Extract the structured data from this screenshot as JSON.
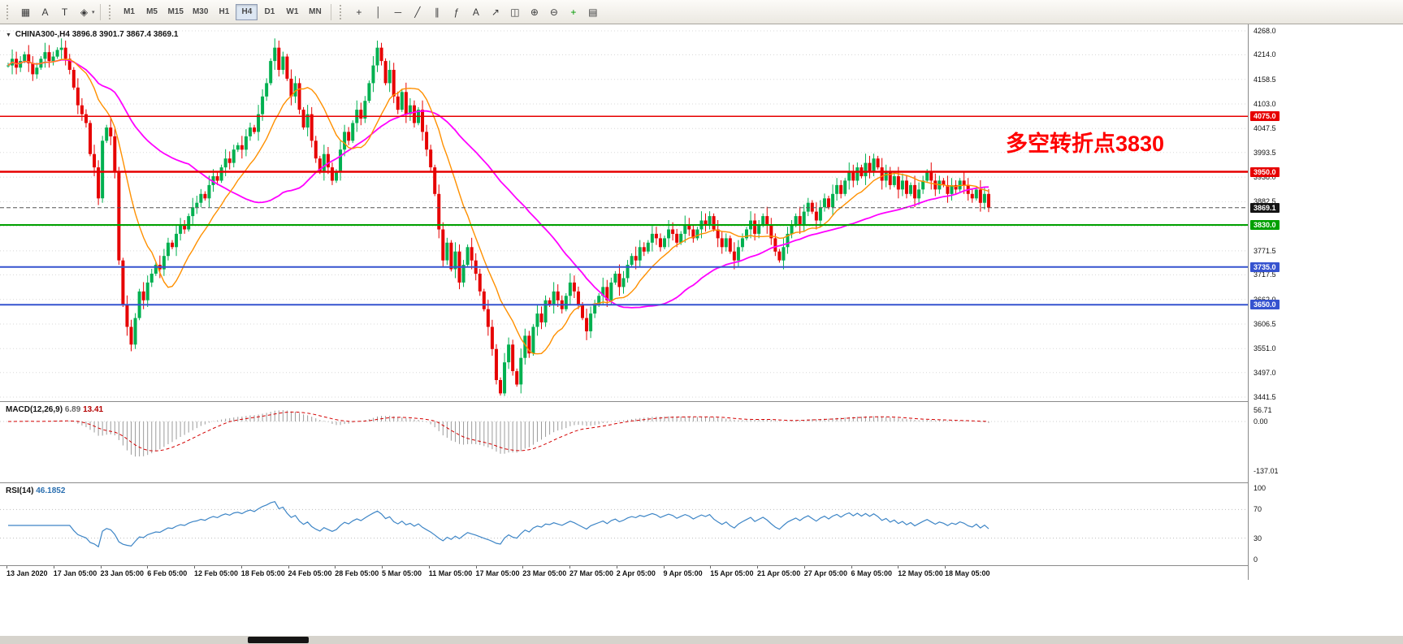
{
  "toolbar": {
    "left_icons": [
      {
        "name": "charts-grid-icon",
        "glyph": "▦"
      },
      {
        "name": "cursor-tool-icon",
        "glyph": "A"
      },
      {
        "name": "text-tool-icon",
        "glyph": "T"
      },
      {
        "name": "shapes-tool-icon",
        "glyph": "◈",
        "dropdown": true
      }
    ],
    "timeframes": [
      "M1",
      "M5",
      "M15",
      "M30",
      "H1",
      "H4",
      "D1",
      "W1",
      "MN"
    ],
    "active_timeframe": "H4",
    "right_icons": [
      {
        "name": "crosshair-icon",
        "glyph": "+"
      },
      {
        "name": "vertical-line-icon",
        "glyph": "│"
      },
      {
        "name": "horizontal-line-icon",
        "glyph": "─"
      },
      {
        "name": "trendline-icon",
        "glyph": "╱"
      },
      {
        "name": "channel-icon",
        "glyph": "∥"
      },
      {
        "name": "fibonacci-icon",
        "glyph": "ƒ"
      },
      {
        "name": "text-label-icon",
        "glyph": "A"
      },
      {
        "name": "arrow-tool-icon",
        "glyph": "↗"
      },
      {
        "name": "tile-windows-icon",
        "glyph": "◫"
      },
      {
        "name": "zoom-in-icon",
        "glyph": "⊕"
      },
      {
        "name": "zoom-out-icon",
        "glyph": "⊖"
      },
      {
        "name": "add-indicator-icon",
        "glyph": "+",
        "color": "#009900"
      },
      {
        "name": "template-icon",
        "glyph": "▤"
      }
    ]
  },
  "chart": {
    "title": {
      "symbol_period": "CHINA300-,H4",
      "ohlc": "3896.8 3901.7 3867.4 3869.1"
    },
    "annotation": {
      "text": "多空转折点3830",
      "color": "#ff0000"
    },
    "price_ticks": [
      "4268.0",
      "4214.0",
      "4158.5",
      "4103.0",
      "4047.5",
      "3993.5",
      "3938.0",
      "3882.5",
      "3827.0",
      "3771.5",
      "3717.5",
      "3662.0",
      "3606.5",
      "3551.0",
      "3497.0",
      "3441.5"
    ],
    "levels": [
      {
        "price": 4075.0,
        "label": "4075.0",
        "color": "#e60000",
        "width": 1.5
      },
      {
        "price": 3950.0,
        "label": "3950.0",
        "color": "#e60000",
        "width": 2.5
      },
      {
        "price": 3830.0,
        "label": "3830.0",
        "color": "#00a000",
        "width": 2
      },
      {
        "price": 3735.0,
        "label": "3735.0",
        "color": "#3653cf",
        "width": 2
      },
      {
        "price": 3650.0,
        "label": "3650.0",
        "color": "#3653cf",
        "width": 2
      }
    ],
    "current_price": {
      "value": 3869.1,
      "label": "3869.1",
      "bg": "#141414"
    },
    "bull_color": "#00b050",
    "bear_color": "#e60000",
    "ma_fast": {
      "period": 13,
      "color": "#ff9000"
    },
    "ma_slow": {
      "period": 45,
      "color": "#ff00ff"
    }
  },
  "chart_data": {
    "type": "candlestick",
    "symbol": "CHINA300-",
    "timeframe": "H4",
    "title": "CHINA300-,H4 3896.8 3901.7 3867.4 3869.1",
    "y_range": {
      "max": 4268.0,
      "min": 3441.5
    },
    "x_labels": [
      "13 Jan 2020",
      "17 Jan 05:00",
      "23 Jan 05:00",
      "6 Feb 05:00",
      "12 Feb 05:00",
      "18 Feb 05:00",
      "24 Feb 05:00",
      "28 Feb 05:00",
      "5 Mar 05:00",
      "11 Mar 05:00",
      "17 Mar 05:00",
      "23 Mar 05:00",
      "27 Mar 05:00",
      "2 Apr 05:00",
      "9 Apr 05:00",
      "15 Apr 05:00",
      "21 Apr 05:00",
      "27 Apr 05:00",
      "6 May 05:00",
      "12 May 05:00",
      "18 May 05:00"
    ],
    "closes": [
      4190,
      4205,
      4185,
      4200,
      4215,
      4195,
      4170,
      4185,
      4205,
      4220,
      4200,
      4210,
      4225,
      4230,
      4205,
      4180,
      4140,
      4100,
      4080,
      4060,
      3990,
      3960,
      3890,
      4020,
      4050,
      4030,
      3950,
      3750,
      3650,
      3600,
      3560,
      3620,
      3680,
      3660,
      3700,
      3720,
      3740,
      3730,
      3760,
      3790,
      3780,
      3810,
      3830,
      3820,
      3850,
      3870,
      3880,
      3900,
      3890,
      3920,
      3940,
      3930,
      3960,
      3980,
      3970,
      4000,
      4010,
      4000,
      4030,
      4050,
      4040,
      4080,
      4120,
      4150,
      4200,
      4230,
      4180,
      4210,
      4160,
      4120,
      4150,
      4090,
      4050,
      4080,
      4020,
      3980,
      3950,
      3990,
      3960,
      3930,
      3950,
      4000,
      4040,
      4020,
      4060,
      4090,
      4070,
      4110,
      4150,
      4190,
      4230,
      4200,
      4150,
      4180,
      4120,
      4090,
      4130,
      4080,
      4100,
      4060,
      4090,
      4040,
      4000,
      3960,
      3900,
      3820,
      3750,
      3790,
      3730,
      3770,
      3700,
      3740,
      3780,
      3750,
      3720,
      3680,
      3640,
      3600,
      3550,
      3480,
      3450,
      3520,
      3560,
      3500,
      3470,
      3530,
      3580,
      3540,
      3600,
      3630,
      3610,
      3660,
      3650,
      3680,
      3660,
      3640,
      3670,
      3700,
      3680,
      3650,
      3620,
      3590,
      3630,
      3650,
      3670,
      3690,
      3660,
      3700,
      3720,
      3690,
      3710,
      3740,
      3760,
      3750,
      3780,
      3770,
      3790,
      3810,
      3800,
      3780,
      3800,
      3820,
      3810,
      3790,
      3810,
      3830,
      3820,
      3800,
      3820,
      3840,
      3830,
      3850,
      3820,
      3800,
      3780,
      3800,
      3770,
      3750,
      3780,
      3800,
      3820,
      3840,
      3810,
      3830,
      3850,
      3830,
      3800,
      3770,
      3750,
      3780,
      3810,
      3830,
      3850,
      3830,
      3860,
      3880,
      3860,
      3840,
      3870,
      3890,
      3870,
      3900,
      3920,
      3900,
      3930,
      3950,
      3930,
      3960,
      3940,
      3970,
      3950,
      3980,
      3960,
      3930,
      3950,
      3920,
      3940,
      3910,
      3930,
      3900,
      3920,
      3890,
      3910,
      3930,
      3950,
      3930,
      3910,
      3930,
      3920,
      3900,
      3920,
      3910,
      3930,
      3920,
      3900,
      3890,
      3910,
      3880,
      3900,
      3869
    ],
    "horizontal_levels": [
      4075.0,
      3950.0,
      3830.0,
      3735.0,
      3650.0
    ],
    "last_price": 3869.1
  },
  "macd": {
    "label": "MACD(12,26,9)",
    "value_main": "6.89",
    "value_signal": "13.41",
    "ticks": [
      "56.71",
      "0.00",
      "-137.01"
    ]
  },
  "rsi": {
    "label": "RSI(14)",
    "value": "46.1852",
    "ticks": [
      "100",
      "70",
      "30",
      "0"
    ]
  }
}
